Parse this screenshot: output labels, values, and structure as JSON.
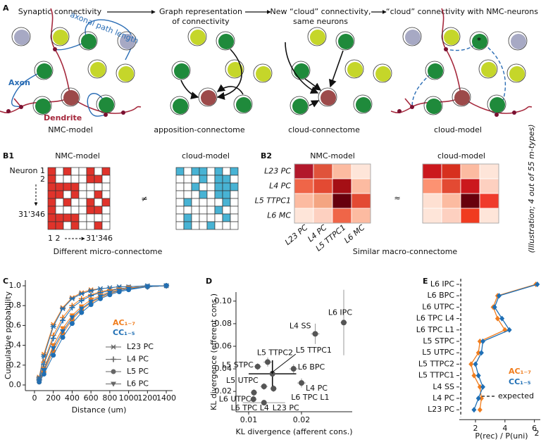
{
  "panel_a": {
    "label": "A",
    "headers": [
      [
        "Synaptic connectivity"
      ],
      [
        "Graph representation",
        "of connectivity"
      ],
      [
        "New “cloud” connectivity,",
        "same neurons"
      ],
      [
        "“cloud” connectivity with NMC-neurons"
      ]
    ],
    "annotations": {
      "path": "axonal path length",
      "axon": "Axon",
      "dendrite": "Dendrite",
      "star": "*"
    },
    "captions": [
      "NMC-model",
      "apposition-connectome",
      "cloud-connectome",
      "cloud-model"
    ]
  },
  "panel_b1": {
    "label": "B1",
    "titles": [
      "NMC-model",
      "cloud-model"
    ],
    "row_labels": [
      "Neuron 1",
      "2",
      "31'346"
    ],
    "col_labels": [
      "1 2",
      "31'346"
    ],
    "relation": "≠",
    "caption": "Different micro-connectome",
    "colors": [
      "#e0332b",
      "#48b3d4"
    ]
  },
  "panel_b2": {
    "label": "B2",
    "titles": [
      "NMC-model",
      "cloud-model"
    ],
    "mtypes": [
      "L23 PC",
      "L4 PC",
      "L5 TTPC1",
      "L6 MC"
    ],
    "relation": "≈",
    "note": "(Illustration; 4 out of 55 m-types)",
    "caption": "Similar macro-connectome",
    "matrices": [
      [
        [
          "#b2182b",
          "#e0533b",
          "#fcbba1",
          "#fee5d9"
        ],
        [
          "#ef6548",
          "#e34a33",
          "#a50f15",
          "#fcbba1"
        ],
        [
          "#fcbba1",
          "#f4a582",
          "#67000d",
          "#e34a33"
        ],
        [
          "#fee5d9",
          "#fdd0c0",
          "#ef6548",
          "#fcbba1"
        ]
      ],
      [
        [
          "#cb181d",
          "#d7301f",
          "#fcbba1",
          "#fee5d9"
        ],
        [
          "#fc9272",
          "#e34a33",
          "#cb181d",
          "#fdd0c0"
        ],
        [
          "#fee0d2",
          "#fcbba1",
          "#67000d",
          "#ef3b2c"
        ],
        [
          "#fee5d9",
          "#fdd0c0",
          "#f03b20",
          "#fee5d9"
        ]
      ]
    ]
  },
  "chart_data": [
    {
      "panel": "C",
      "type": "line",
      "xlabel": "Distance (um)",
      "ylabel": "Cumulative probability",
      "x": [
        50,
        100,
        200,
        300,
        400,
        500,
        600,
        700,
        800,
        900,
        1000,
        1200,
        1400
      ],
      "xlim": [
        -97,
        1467
      ],
      "xticks": [
        0,
        200,
        400,
        600,
        800,
        1000,
        1200,
        1400
      ],
      "ylim": [
        -0.057,
        1.057
      ],
      "yticks": [
        {
          "value": 0,
          "label": "0.0"
        },
        0.2,
        0.4,
        0.6,
        0.8,
        {
          "value": 1,
          "label": "1.0"
        }
      ],
      "groups": [
        {
          "name": "AC₁₋₇",
          "color": "#f07d1e"
        },
        {
          "name": "CC₁₋₅",
          "color": "#1f6fb5"
        }
      ],
      "series": [
        {
          "name": "L23 PC",
          "marker": "star",
          "values": [
            [
              0.08,
              0.31,
              0.61,
              0.78,
              0.88,
              0.93,
              0.96,
              0.97,
              0.98,
              0.99,
              0.99,
              1.0,
              1.0
            ],
            [
              0.07,
              0.29,
              0.59,
              0.77,
              0.87,
              0.92,
              0.95,
              0.97,
              0.98,
              0.99,
              0.99,
              1.0,
              1.0
            ]
          ]
        },
        {
          "name": "L4 PC",
          "marker": "plus",
          "values": [
            [
              0.05,
              0.23,
              0.5,
              0.68,
              0.8,
              0.87,
              0.91,
              0.94,
              0.96,
              0.97,
              0.98,
              0.99,
              1.0
            ],
            [
              0.05,
              0.21,
              0.47,
              0.65,
              0.78,
              0.85,
              0.9,
              0.93,
              0.95,
              0.97,
              0.98,
              0.99,
              1.0
            ]
          ]
        },
        {
          "name": "L5 PC",
          "marker": "circle",
          "values": [
            [
              0.03,
              0.13,
              0.34,
              0.52,
              0.66,
              0.76,
              0.83,
              0.88,
              0.92,
              0.95,
              0.97,
              0.99,
              1.0
            ],
            [
              0.03,
              0.11,
              0.3,
              0.48,
              0.62,
              0.73,
              0.81,
              0.87,
              0.91,
              0.94,
              0.96,
              0.99,
              1.0
            ]
          ]
        },
        {
          "name": "L6 PC",
          "marker": "triangle",
          "values": [
            [
              0.04,
              0.16,
              0.4,
              0.57,
              0.7,
              0.79,
              0.86,
              0.9,
              0.94,
              0.96,
              0.98,
              0.99,
              1.0
            ],
            [
              0.04,
              0.15,
              0.37,
              0.54,
              0.68,
              0.77,
              0.84,
              0.89,
              0.93,
              0.95,
              0.97,
              0.99,
              1.0
            ]
          ]
        }
      ]
    },
    {
      "panel": "D",
      "type": "scatter",
      "xlabel": "KL divergence (afferent cons.)",
      "ylabel": "KL divergence (efferent cons.)",
      "xlim": [
        0.0076,
        0.0296
      ],
      "xticks": [
        0.01,
        0.02
      ],
      "ylim": [
        0.002,
        0.108
      ],
      "yticks": [
        0.02,
        0.04,
        0.06,
        0.08,
        {
          "value": 0.1,
          "label": "0.10"
        }
      ],
      "color": "#555555",
      "points": [
        {
          "name": "L6 IPC",
          "x": 0.028,
          "y": 0.081,
          "xerr": 0.0006,
          "yerr": 0.029
        },
        {
          "name": "L4 SS",
          "x": 0.0226,
          "y": 0.071,
          "xerr": 0.0008,
          "yerr": 0.009
        },
        {
          "name": "L5 TTPC1",
          "x": 0.0145,
          "y": 0.0356,
          "xerr": 0.0045,
          "yerr": 0.012
        },
        {
          "name": "L5 TTPC2",
          "x": 0.0136,
          "y": 0.046,
          "xerr": 0.0008,
          "yerr": 0.004
        },
        {
          "name": "L5 STPC",
          "x": 0.0117,
          "y": 0.042,
          "xerr": 0.0007,
          "yerr": 0.003
        },
        {
          "name": "L6 BPC",
          "x": 0.0185,
          "y": 0.04,
          "xerr": 0.0008,
          "yerr": 0.004
        },
        {
          "name": "L5 UTPC",
          "x": 0.0129,
          "y": 0.0244,
          "xerr": 0.0007,
          "yerr": 0.003
        },
        {
          "name": "L4 PC",
          "x": 0.02,
          "y": 0.0275,
          "xerr": 0.0008,
          "yerr": 0.004
        },
        {
          "name": "L6 UTPC",
          "x": 0.011,
          "y": 0.019,
          "xerr": 0.0006,
          "yerr": 0.003
        },
        {
          "name": "L6 TPC L1",
          "x": 0.0147,
          "y": 0.0225,
          "xerr": 0.0006,
          "yerr": 0.003
        },
        {
          "name": "L6 TPC L4",
          "x": 0.0109,
          "y": 0.0131,
          "xerr": 0.0006,
          "yerr": 0.003
        },
        {
          "name": "L23 PC",
          "x": 0.0129,
          "y": 0.01,
          "xerr": 0.004,
          "yerr": 0.002
        }
      ]
    },
    {
      "panel": "E",
      "type": "line",
      "orientation": "horizontal",
      "categories": [
        "L6 IPC",
        "L6 BPC",
        "L6 UTPC",
        "L6 TPC L4",
        "L6 TPC L1",
        "L5 STPC",
        "L5 UTPC",
        "L5 TTPC2",
        "L5 TTPC1",
        "L4 SS",
        "L4 PC",
        "L23 PC"
      ],
      "series": [
        {
          "name": "AC₁₋₇",
          "color": "#f07d1e",
          "values": [
            6.1,
            3.5,
            3.2,
            3.5,
            4.0,
            2.3,
            2.2,
            1.7,
            1.9,
            2.3,
            2.4,
            2.3
          ]
        },
        {
          "name": "CC₁₋₅",
          "color": "#1f6fb5",
          "values": [
            6.2,
            3.6,
            3.3,
            3.8,
            4.3,
            2.5,
            2.4,
            2.0,
            2.2,
            2.5,
            2.2,
            1.9
          ]
        }
      ],
      "expected": 1,
      "expected_label": "expected",
      "xlabel": "P(rec) / P(uni)",
      "xlabel_exponent": "2",
      "xlim": [
        0.9,
        6.4
      ],
      "xticks": [
        2,
        4,
        6
      ]
    }
  ]
}
